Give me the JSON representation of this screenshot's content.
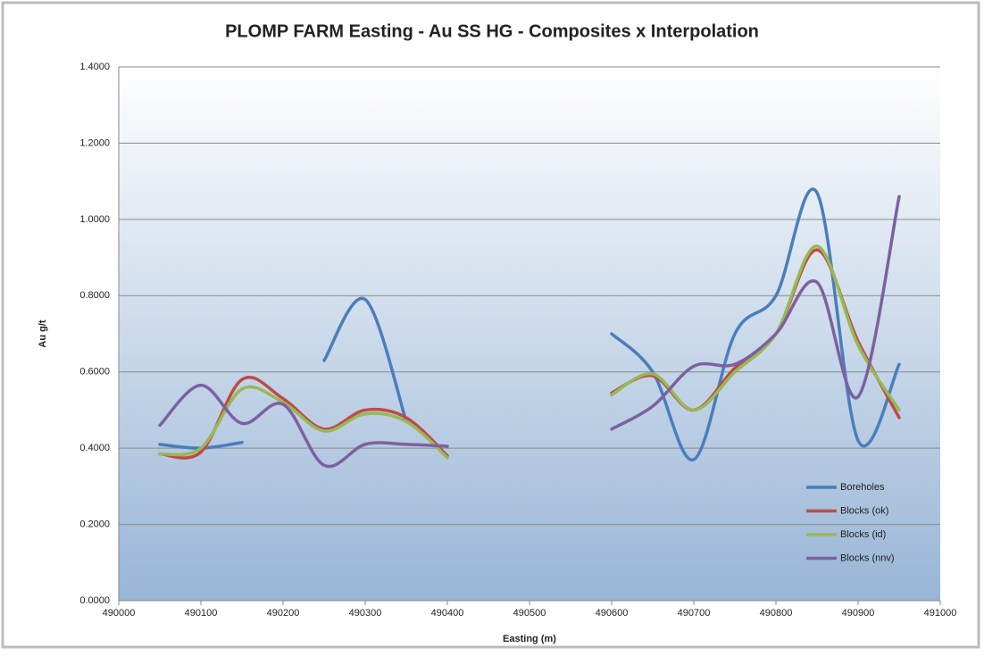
{
  "chart_data": {
    "type": "line",
    "title": "PLOMP FARM Easting - Au SS HG - Composites x Interpolation",
    "x_label": "Easting (m)",
    "y_label": "Au g/t",
    "x": [
      490050,
      490100,
      490150,
      490200,
      490250,
      490300,
      490350,
      490400,
      490450,
      490500,
      490550,
      490600,
      490650,
      490700,
      490750,
      490800,
      490850,
      490900,
      490950
    ],
    "xlim": [
      490000,
      491000
    ],
    "xticks": [
      490000,
      490100,
      490200,
      490300,
      490400,
      490500,
      490600,
      490700,
      490800,
      490900,
      491000
    ],
    "ylim": [
      0,
      1.4
    ],
    "yticks": [
      {
        "value": 0,
        "label": "0.0000"
      },
      {
        "value": 0.2,
        "label": "0.2000"
      },
      {
        "value": 0.4,
        "label": "0.4000"
      },
      {
        "value": 0.6,
        "label": "0.6000"
      },
      {
        "value": 0.8,
        "label": "0.8000"
      },
      {
        "value": 1.0,
        "label": "1.0000"
      },
      {
        "value": 1.2,
        "label": "1.2000"
      },
      {
        "value": 1.4,
        "label": "1.4000"
      }
    ],
    "grid": true,
    "legend": "lower right",
    "series": [
      {
        "name": "Boreholes",
        "color": "#4a7ebb",
        "values": [
          0.41,
          0.4,
          0.415,
          null,
          0.63,
          0.79,
          0.47,
          null,
          null,
          null,
          null,
          0.7,
          0.6,
          0.37,
          0.7,
          0.8,
          1.07,
          0.42,
          0.62
        ]
      },
      {
        "name": "Blocks (ok)",
        "color": "#be4b48",
        "values": [
          0.385,
          0.39,
          0.58,
          0.53,
          0.45,
          0.5,
          0.48,
          0.38,
          null,
          null,
          null,
          0.545,
          0.59,
          0.5,
          0.61,
          0.7,
          0.92,
          0.68,
          0.48
        ]
      },
      {
        "name": "Blocks (id)",
        "color": "#98b954",
        "values": [
          0.385,
          0.4,
          0.555,
          0.52,
          0.445,
          0.49,
          0.47,
          0.375,
          null,
          null,
          null,
          0.54,
          0.595,
          0.5,
          0.6,
          0.7,
          0.93,
          0.67,
          0.5
        ]
      },
      {
        "name": "Blocks (nnv)",
        "color": "#7d60a0",
        "values": [
          0.46,
          0.565,
          0.465,
          0.515,
          0.355,
          0.41,
          0.41,
          0.405,
          null,
          null,
          null,
          0.45,
          0.51,
          0.615,
          0.62,
          0.7,
          0.835,
          0.535,
          1.06
        ]
      }
    ]
  }
}
